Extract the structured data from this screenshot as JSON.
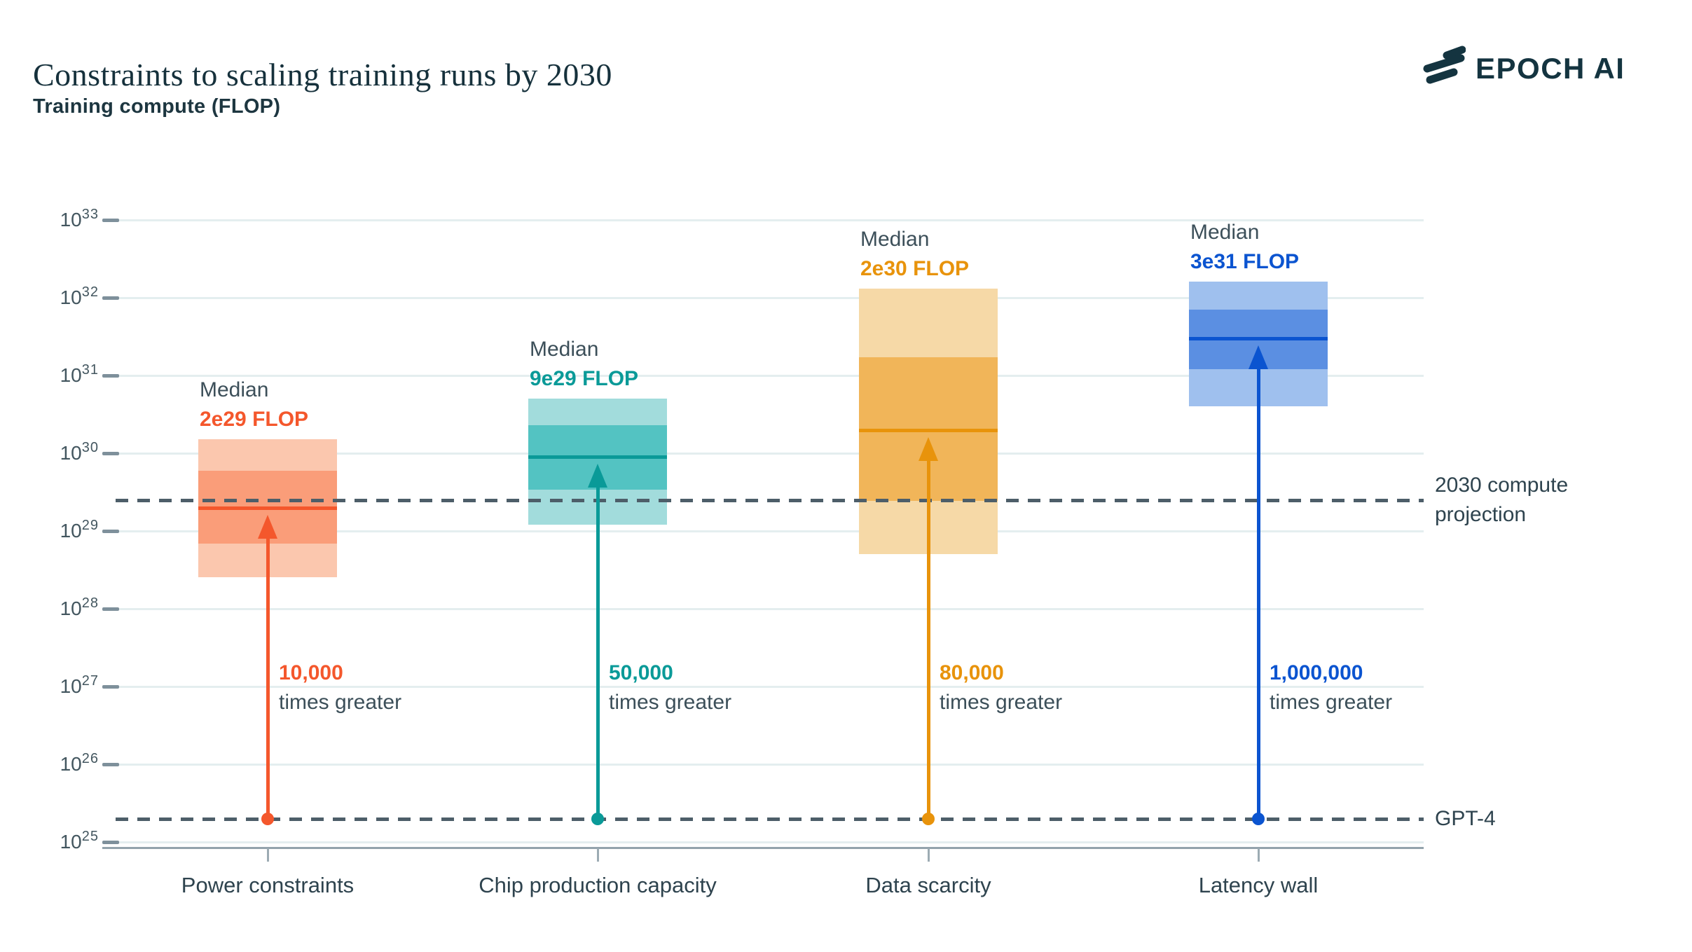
{
  "title": "Constraints to scaling training runs by 2030",
  "brand": {
    "name": "EPOCH AI",
    "color": "#143440"
  },
  "y_axis": {
    "label": "Training compute (FLOP)",
    "base": 10,
    "exponents": [
      33,
      32,
      31,
      30,
      29,
      28,
      27,
      26,
      25
    ]
  },
  "reference_lines": [
    {
      "id": "compute-projection-2030",
      "value": 2.5e+29,
      "label_lines": [
        "2030 compute",
        "projection"
      ]
    },
    {
      "id": "gpt4",
      "value": 2e+25,
      "label_lines": [
        "GPT-4"
      ]
    }
  ],
  "chart_data": {
    "type": "box-range",
    "scale": "log10",
    "unit": "FLOP",
    "ylim": [
      1e+25,
      1e+33
    ],
    "grid": true,
    "legend_position": "none",
    "median_word": "Median",
    "categories": [
      "Power constraints",
      "Chip production capacity",
      "Data scarcity",
      "Latency wall"
    ],
    "series": [
      {
        "category": "Power constraints",
        "median": 2e+29,
        "median_label": "2e29 FLOP",
        "range_outer": [
          2.5e+28,
          1.5e+30
        ],
        "range_inner": [
          7e+28,
          6e+29
        ],
        "vs_gpt4_multiplier": "10,000",
        "vs_gpt4_caption": "times greater",
        "colors": {
          "accent": "#f4572c",
          "band_light": "#fbc7ae",
          "band_mid": "#fa9d79"
        }
      },
      {
        "category": "Chip production capacity",
        "median": 9e+29,
        "median_label": "9e29 FLOP",
        "range_outer": [
          1.2e+29,
          5e+30
        ],
        "range_inner": [
          3.4e+29,
          2.3e+30
        ],
        "vs_gpt4_multiplier": "50,000",
        "vs_gpt4_caption": "times greater",
        "colors": {
          "accent": "#0a9a98",
          "band_light": "#a2dcdc",
          "band_mid": "#53c3c2"
        }
      },
      {
        "category": "Data scarcity",
        "median": 2e+30,
        "median_label": "2e30 FLOP",
        "range_outer": [
          5e+28,
          1.3e+32
        ],
        "range_inner": [
          2.4e+29,
          1.7e+31
        ],
        "vs_gpt4_multiplier": "80,000",
        "vs_gpt4_caption": "times greater",
        "colors": {
          "accent": "#e8930b",
          "band_light": "#f6d9a7",
          "band_mid": "#f1b559"
        }
      },
      {
        "category": "Latency wall",
        "median": 3e+31,
        "median_label": "3e31 FLOP",
        "range_outer": [
          4e+30,
          1.6e+32
        ],
        "range_inner": [
          1.2e+31,
          7e+31
        ],
        "vs_gpt4_multiplier": "1,000,000",
        "vs_gpt4_caption": "times greater",
        "colors": {
          "accent": "#0b54d0",
          "band_light": "#9fc0ee",
          "band_mid": "#5b8fe2"
        }
      }
    ]
  }
}
